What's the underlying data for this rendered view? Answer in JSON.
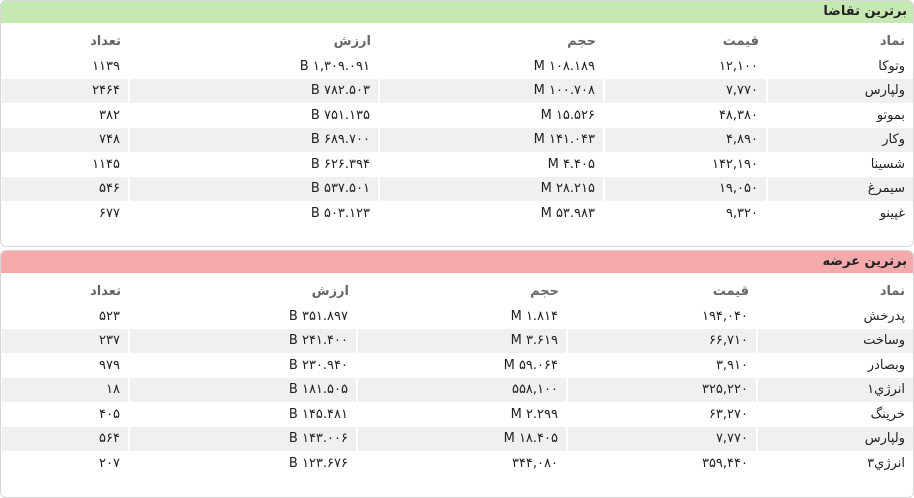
{
  "demand": {
    "title": "برترین تقاضا",
    "headers": [
      "نماد",
      "قیمت",
      "حجم",
      "ارزش",
      "تعداد"
    ],
    "rows": [
      [
        "وتوکا",
        "۱۲,۱۰۰",
        "۱۰۸.۱۸۹ M",
        "۱,۳۰۹.۰۹۱ B",
        "۱۱۳۹"
      ],
      [
        "ولپارس",
        "۷,۷۷۰",
        "۱۰۰.۷۰۸ M",
        "۷۸۲.۵۰۳ B",
        "۲۴۶۴"
      ],
      [
        "بموتو",
        "۴۸,۳۸۰",
        "۱۵.۵۲۶ M",
        "۷۵۱.۱۳۵ B",
        "۳۸۲"
      ],
      [
        "وکار",
        "۴,۸۹۰",
        "۱۴۱.۰۴۳ M",
        "۶۸۹.۷۰۰ B",
        "۷۴۸"
      ],
      [
        "شسینا",
        "۱۴۲,۱۹۰",
        "۴.۴۰۵ M",
        "۶۲۶.۳۹۴ B",
        "۱۱۴۵"
      ],
      [
        "سیمرغ",
        "۱۹,۰۵۰",
        "۲۸.۲۱۵ M",
        "۵۳۷.۵۰۱ B",
        "۵۴۶"
      ],
      [
        "غپینو",
        "۹,۳۲۰",
        "۵۳.۹۸۳ M",
        "۵۰۳.۱۲۳ B",
        "۶۷۷"
      ]
    ]
  },
  "supply": {
    "title": "برترین عرضه",
    "headers": [
      "نماد",
      "قیمت",
      "حجم",
      "ارزش",
      "تعداد"
    ],
    "rows": [
      [
        "پدرخش",
        "۱۹۴,۰۴۰",
        "۱.۸۱۴ M",
        "۳۵۱.۸۹۷ B",
        "۵۲۳"
      ],
      [
        "وساخت",
        "۶۶,۷۱۰",
        "۳.۶۱۹ M",
        "۲۴۱.۴۰۰ B",
        "۲۳۷"
      ],
      [
        "وبصادر",
        "۳,۹۱۰",
        "۵۹.۰۶۴ M",
        "۲۳۰.۹۴۰ B",
        "۹۷۹"
      ],
      [
        "انرژي۱",
        "۳۲۵,۲۲۰",
        "۵۵۸,۱۰۰",
        "۱۸۱.۵۰۵ B",
        "۱۸"
      ],
      [
        "خرینگ",
        "۶۳,۲۷۰",
        "۲.۲۹۹ M",
        "۱۴۵.۴۸۱ B",
        "۴۰۵"
      ],
      [
        "ولپارس",
        "۷,۷۷۰",
        "۱۸.۴۰۵ M",
        "۱۴۳.۰۰۶ B",
        "۵۶۴"
      ],
      [
        "انرژي۳",
        "۳۵۹,۴۴۰",
        "۳۴۴,۰۸۰",
        "۱۲۳.۶۷۶ B",
        "۲۰۷"
      ]
    ]
  }
}
